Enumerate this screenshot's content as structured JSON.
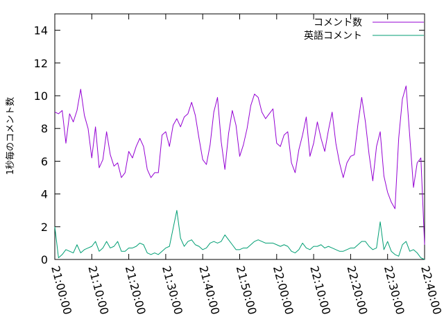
{
  "chart_data": {
    "type": "line",
    "title": "",
    "xlabel": "",
    "ylabel": "1秒毎のコメント数",
    "ylim": [
      0,
      15
    ],
    "xlim": [
      "21:00:00",
      "22:40:00"
    ],
    "yticks": [
      0,
      2,
      4,
      6,
      8,
      10,
      12,
      14
    ],
    "xticks": [
      "21:00:00",
      "21:10:00",
      "21:20:00",
      "21:30:00",
      "21:40:00",
      "21:50:00",
      "22:00:00",
      "22:10:00",
      "22:20:00",
      "22:30:00",
      "22:40:00"
    ],
    "legend": "top-right",
    "grid": false,
    "x_start": "21:00:00",
    "x_step_seconds": 60,
    "series": [
      {
        "name": "コメント数",
        "color": "#9400d3",
        "values": [
          9.0,
          8.9,
          9.1,
          7.1,
          8.9,
          8.4,
          9.1,
          10.4,
          8.8,
          8.0,
          6.2,
          8.1,
          5.6,
          6.1,
          7.8,
          6.4,
          5.7,
          5.9,
          5.0,
          5.3,
          6.6,
          6.2,
          6.9,
          7.4,
          6.9,
          5.5,
          5.0,
          5.3,
          5.3,
          7.6,
          7.8,
          6.9,
          8.2,
          8.6,
          8.1,
          8.7,
          8.9,
          9.6,
          8.8,
          7.4,
          6.1,
          5.8,
          7.0,
          9.0,
          9.9,
          7.2,
          5.5,
          7.7,
          9.1,
          8.2,
          6.3,
          7.0,
          8.0,
          9.4,
          10.1,
          9.9,
          9.0,
          8.6,
          8.9,
          9.2,
          7.1,
          6.9,
          7.6,
          7.8,
          5.9,
          5.3,
          6.7,
          7.6,
          8.7,
          6.3,
          7.1,
          8.4,
          7.4,
          6.6,
          7.9,
          9.0,
          7.1,
          5.9,
          5.0,
          5.9,
          6.3,
          6.4,
          8.3,
          9.9,
          8.4,
          6.4,
          4.8,
          6.9,
          7.8,
          5.1,
          4.1,
          3.5,
          3.1,
          7.4,
          9.8,
          10.6,
          7.5,
          4.4,
          5.9,
          6.2,
          0.9
        ]
      },
      {
        "name": "英語コメント",
        "color": "#009e73",
        "values": [
          2.0,
          0.1,
          0.3,
          0.6,
          0.5,
          0.4,
          0.9,
          0.4,
          0.6,
          0.7,
          0.8,
          1.1,
          0.5,
          0.7,
          1.1,
          0.7,
          0.8,
          1.1,
          0.5,
          0.5,
          0.7,
          0.7,
          0.8,
          1.0,
          0.9,
          0.4,
          0.3,
          0.4,
          0.3,
          0.5,
          0.7,
          0.8,
          1.9,
          3.0,
          1.3,
          0.8,
          1.1,
          1.2,
          0.9,
          0.8,
          0.6,
          0.7,
          1.0,
          1.1,
          1.0,
          1.1,
          1.5,
          1.2,
          0.9,
          0.6,
          0.6,
          0.7,
          0.7,
          0.9,
          1.1,
          1.2,
          1.1,
          1.0,
          1.0,
          1.0,
          0.9,
          0.8,
          0.9,
          0.8,
          0.5,
          0.4,
          0.6,
          1.0,
          0.7,
          0.6,
          0.8,
          0.8,
          0.9,
          0.7,
          0.8,
          0.7,
          0.6,
          0.5,
          0.5,
          0.6,
          0.7,
          0.7,
          0.9,
          1.1,
          1.1,
          0.8,
          0.6,
          0.7,
          2.3,
          0.6,
          1.1,
          0.5,
          0.3,
          0.2,
          0.9,
          1.1,
          0.5,
          0.6,
          0.4,
          0.1,
          0.0
        ]
      }
    ]
  }
}
